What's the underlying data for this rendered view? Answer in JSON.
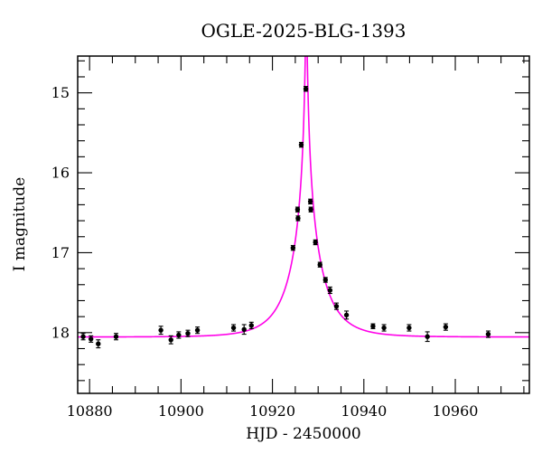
{
  "chart_data": {
    "type": "scatter",
    "title": "OGLE-2025-BLG-1393",
    "xlabel": "HJD - 2450000",
    "ylabel": "I magnitude",
    "x_axis": {
      "min": 10877.4,
      "max": 10976.2,
      "major_ticks": [
        10880,
        10900,
        10920,
        10940,
        10960
      ],
      "minor_step": 5
    },
    "y_axis": {
      "inverted_magnitude": true,
      "top": 14.54,
      "bottom": 18.76,
      "major_ticks": [
        15,
        16,
        17,
        18
      ],
      "minor_step": 0.2
    },
    "colors": {
      "points": "#000000",
      "model_curve": "#ff00e8",
      "frame": "#000000",
      "background": "#ffffff"
    },
    "marker": "filled-circle-with-error-bars",
    "grid": false,
    "legend": null,
    "points": [
      {
        "x": 10878.6,
        "y": 18.05,
        "err": 0.04
      },
      {
        "x": 10880.3,
        "y": 18.08,
        "err": 0.04
      },
      {
        "x": 10881.9,
        "y": 18.14,
        "err": 0.05
      },
      {
        "x": 10885.8,
        "y": 18.05,
        "err": 0.04
      },
      {
        "x": 10895.6,
        "y": 17.97,
        "err": 0.05
      },
      {
        "x": 10897.8,
        "y": 18.09,
        "err": 0.05
      },
      {
        "x": 10899.5,
        "y": 18.03,
        "err": 0.04
      },
      {
        "x": 10901.5,
        "y": 18.01,
        "err": 0.04
      },
      {
        "x": 10903.6,
        "y": 17.97,
        "err": 0.04
      },
      {
        "x": 10911.5,
        "y": 17.94,
        "err": 0.04
      },
      {
        "x": 10913.8,
        "y": 17.96,
        "err": 0.06
      },
      {
        "x": 10915.4,
        "y": 17.91,
        "err": 0.04
      },
      {
        "x": 10924.5,
        "y": 16.94,
        "err": 0.03
      },
      {
        "x": 10925.5,
        "y": 16.46,
        "err": 0.03
      },
      {
        "x": 10925.6,
        "y": 16.57,
        "err": 0.03
      },
      {
        "x": 10926.3,
        "y": 15.65,
        "err": 0.03
      },
      {
        "x": 10927.3,
        "y": 14.95,
        "err": 0.03
      },
      {
        "x": 10928.3,
        "y": 16.36,
        "err": 0.03
      },
      {
        "x": 10928.4,
        "y": 16.46,
        "err": 0.03
      },
      {
        "x": 10929.4,
        "y": 16.87,
        "err": 0.03
      },
      {
        "x": 10930.4,
        "y": 17.15,
        "err": 0.03
      },
      {
        "x": 10931.6,
        "y": 17.34,
        "err": 0.03
      },
      {
        "x": 10932.6,
        "y": 17.47,
        "err": 0.04
      },
      {
        "x": 10934.0,
        "y": 17.67,
        "err": 0.04
      },
      {
        "x": 10936.2,
        "y": 17.78,
        "err": 0.05
      },
      {
        "x": 10942.0,
        "y": 17.92,
        "err": 0.03
      },
      {
        "x": 10944.4,
        "y": 17.94,
        "err": 0.04
      },
      {
        "x": 10949.9,
        "y": 17.94,
        "err": 0.04
      },
      {
        "x": 10953.9,
        "y": 18.05,
        "err": 0.06
      },
      {
        "x": 10957.9,
        "y": 17.93,
        "err": 0.04
      },
      {
        "x": 10967.2,
        "y": 18.02,
        "err": 0.04
      }
    ],
    "model": {
      "kind": "paczynski-point-lens",
      "t0": 10927.4,
      "u0": 0.025,
      "tE": 7.0,
      "I0": 18.055
    }
  }
}
